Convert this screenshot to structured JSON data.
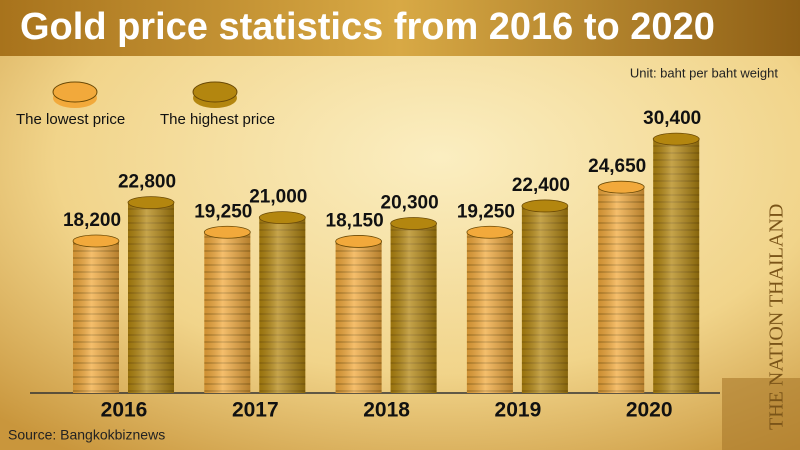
{
  "chart_data": {
    "type": "bar",
    "title": "Gold price statistics from 2016 to 2020",
    "unit_note": "Unit: baht per baht weight",
    "source": "Source: Bangkokbiznews",
    "logo": "THE NATION THAILAND",
    "categories": [
      "2016",
      "2017",
      "2018",
      "2019",
      "2020"
    ],
    "series": [
      {
        "name": "The lowest price",
        "color": "#f2a93b",
        "values": [
          18200,
          19250,
          18150,
          19250,
          24650
        ],
        "value_labels": [
          "18,200",
          "19,250",
          "18,150",
          "19,250",
          "24,650"
        ]
      },
      {
        "name": "The highest price",
        "color": "#b3860f",
        "values": [
          22800,
          21000,
          20300,
          22400,
          30400
        ],
        "value_labels": [
          "22,800",
          "21,000",
          "20,300",
          "22,400",
          "30,400"
        ]
      }
    ]
  }
}
